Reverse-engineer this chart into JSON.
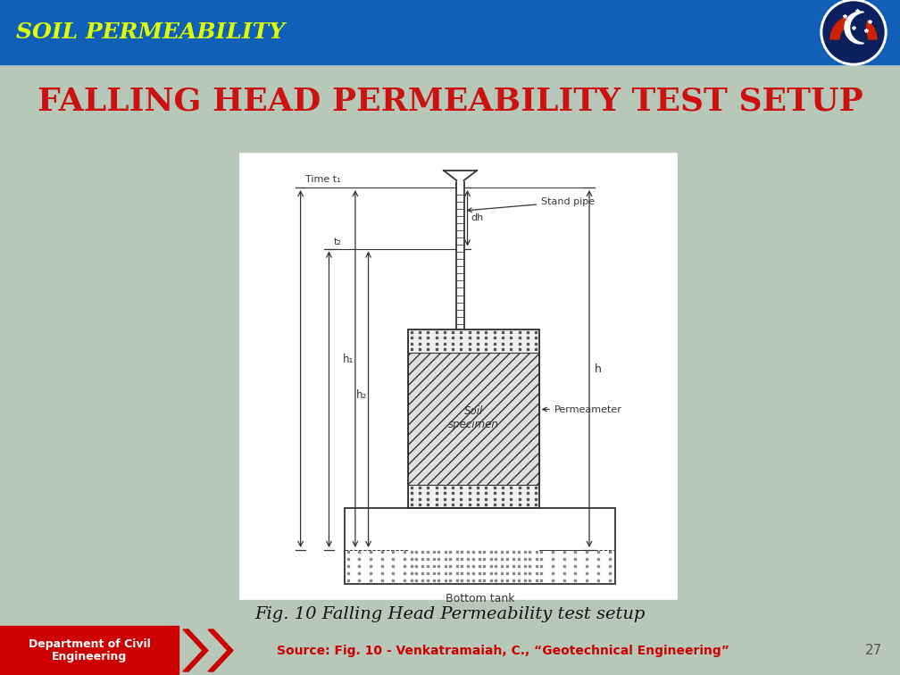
{
  "title_bar_color": "#1060B8",
  "title_bar_text": "SOIL PERMEABILITY",
  "title_bar_text_color": "#DDFF00",
  "bg_color": "#B8C8B8",
  "slide_title": "FALLING HEAD PERMEABILITY TEST SETUP",
  "slide_title_color": "#CC1111",
  "slide_title_fontsize": 26,
  "caption_text": "Fig. 10 Falling Head Permeability test setup",
  "caption_color": "#111111",
  "caption_fontsize": 14,
  "footer_left_text": "Department of Civil\nEngineering",
  "footer_left_color": "#FFFFFF",
  "footer_left_bg": "#CC0000",
  "footer_source_text": "Source: Fig. 10 - Venkatramaiah, C., “Geotechnical Engineering”",
  "footer_source_color": "#CC0000",
  "footer_page_num": "27",
  "footer_page_color": "#555555",
  "lc": "#333333",
  "white": "#FFFFFF"
}
